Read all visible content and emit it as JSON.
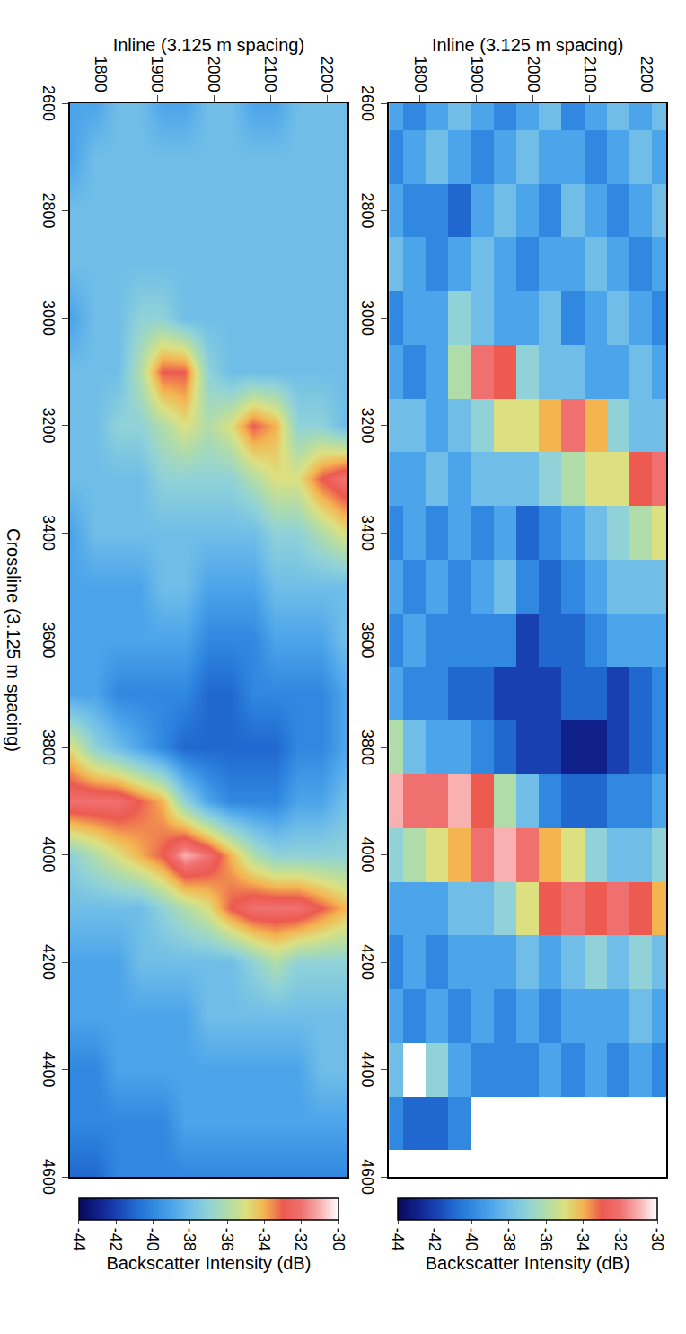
{
  "chart_data": [
    {
      "type": "heatmap",
      "ylabel": "Inline (3.125 m spacing)",
      "x": [
        2600,
        2700,
        2800,
        2900,
        3000,
        3100,
        3200,
        3300,
        3400,
        3500,
        3600,
        3700,
        3800,
        3900,
        4000,
        4100,
        4200,
        4300,
        4400,
        4500,
        4600
      ],
      "y": [
        1750,
        1790,
        1830,
        1870,
        1910,
        1950,
        1990,
        2030,
        2070,
        2110,
        2150,
        2190,
        2230
      ],
      "z": [
        [
          -39,
          -40,
          -39,
          -38,
          -40,
          -39,
          -38,
          -39,
          -40,
          -39,
          -40,
          -39,
          -36,
          -31,
          -37,
          -39,
          -40,
          -39,
          -38,
          -40,
          null
        ],
        [
          -40,
          -39,
          -40,
          -39,
          -39,
          -40,
          -38,
          -39,
          -39,
          -40,
          -39,
          -40,
          -38,
          -32,
          -36,
          -39,
          -39,
          -40,
          null,
          -41,
          null
        ],
        [
          -39,
          -38,
          -40,
          -40,
          -39,
          -39,
          -39,
          -38,
          -40,
          -39,
          -40,
          -40,
          -39,
          -32,
          -35,
          -39,
          -40,
          -39,
          -37,
          -41,
          null
        ],
        [
          -38,
          -39,
          -41,
          -39,
          -37,
          -36,
          -38,
          -39,
          -39,
          -40,
          -40,
          -41,
          -39,
          -31,
          -34,
          -38,
          -39,
          -40,
          -39,
          -40,
          null
        ],
        [
          -39,
          -40,
          -39,
          -38,
          -38,
          -32,
          -37,
          -38,
          -40,
          -39,
          -40,
          -41,
          -40,
          -33,
          -32,
          -38,
          -39,
          -39,
          -40,
          null,
          null
        ],
        [
          -40,
          -39,
          -38,
          -39,
          -39,
          -33,
          -35,
          -38,
          -39,
          -38,
          -40,
          -42,
          -41,
          -36,
          -31,
          -37,
          -39,
          -40,
          -40,
          null,
          null
        ],
        [
          -39,
          -38,
          -39,
          -40,
          -39,
          -37,
          -35,
          -38,
          -41,
          -40,
          -42,
          -42,
          -42,
          -38,
          -32,
          -35,
          -38,
          -39,
          -40,
          null,
          null
        ],
        [
          -38,
          -39,
          -40,
          -39,
          -38,
          -38,
          -34,
          -37,
          -40,
          -41,
          -41,
          -42,
          -42,
          -40,
          -34,
          -33,
          -39,
          -40,
          -39,
          null,
          null
        ],
        [
          -40,
          -39,
          -38,
          -39,
          -40,
          -38,
          -32,
          -36,
          -39,
          -40,
          -41,
          -41,
          -43,
          -41,
          -35,
          -32,
          -38,
          -39,
          -40,
          null,
          null
        ],
        [
          -39,
          -40,
          -39,
          -38,
          -39,
          -39,
          -34,
          -35,
          -38,
          -39,
          -40,
          -41,
          -43,
          -41,
          -37,
          -33,
          -37,
          -39,
          -39,
          null,
          null
        ],
        [
          -38,
          -39,
          -40,
          -39,
          -38,
          -39,
          -37,
          -35,
          -37,
          -38,
          -39,
          -42,
          -42,
          -40,
          -38,
          -32,
          -38,
          -39,
          -40,
          null,
          null
        ],
        [
          -39,
          -38,
          -39,
          -40,
          -39,
          -38,
          -38,
          -33,
          -36,
          -38,
          -39,
          -41,
          -41,
          -40,
          -38,
          -33,
          -37,
          -38,
          -39,
          null,
          null
        ],
        [
          -38,
          -39,
          -38,
          -39,
          -40,
          -39,
          -38,
          -32,
          -35,
          -38,
          -39,
          -40,
          -40,
          -39,
          -37,
          -34,
          -38,
          -39,
          -40,
          null,
          null
        ]
      ],
      "xlim": [
        2600,
        4600
      ],
      "ylim": [
        1745,
        2235
      ],
      "xticks": [
        2600,
        2800,
        3000,
        3200,
        3400,
        3600,
        3800,
        4000,
        4200,
        4400,
        4600
      ],
      "yticks": [
        1800,
        1900,
        2000,
        2100,
        2200
      ],
      "colorbar": {
        "title": "Backscatter Intensity (dB)",
        "range": [
          -44,
          -30
        ],
        "ticks": [
          -30,
          -32,
          -34,
          -36,
          -38,
          -40,
          -42,
          -44
        ]
      }
    },
    {
      "type": "heatmap",
      "xlabel": "Crossline (3.125 m spacing)",
      "ylabel": "Inline (3.125 m spacing)",
      "x": [
        2600,
        2700,
        2800,
        2900,
        3000,
        3100,
        3200,
        3300,
        3400,
        3500,
        3600,
        3700,
        3800,
        3900,
        4000,
        4100,
        4200,
        4300,
        4400,
        4500,
        4600
      ],
      "y": [
        1750,
        1790,
        1830,
        1870,
        1910,
        1950,
        1990,
        2030,
        2070,
        2110,
        2150,
        2190,
        2230
      ],
      "z": [
        [
          -39,
          -39,
          -38,
          -38,
          -39,
          -38,
          -38,
          -38,
          -39,
          -39,
          -39,
          -39,
          -35,
          -32,
          -37,
          -38,
          -39,
          -39,
          -40,
          -40,
          -41
        ],
        [
          -39,
          -38,
          -38,
          -38,
          -38,
          -38,
          -38,
          -38,
          -38,
          -39,
          -39,
          -39,
          -37,
          -32,
          -36,
          -38,
          -39,
          -39,
          -40,
          -40,
          -41
        ],
        [
          -38,
          -38,
          -38,
          -38,
          -38,
          -38,
          -37,
          -38,
          -38,
          -39,
          -39,
          -40,
          -38,
          -32,
          -35,
          -38,
          -39,
          -39,
          -39,
          -40,
          -40
        ],
        [
          -38,
          -38,
          -38,
          -38,
          -37,
          -36,
          -37,
          -38,
          -38,
          -39,
          -39,
          -40,
          -39,
          -33,
          -34,
          -38,
          -38,
          -39,
          -39,
          -40,
          -40
        ],
        [
          -39,
          -38,
          -38,
          -38,
          -37,
          -33,
          -36,
          -37,
          -38,
          -38,
          -39,
          -40,
          -40,
          -34,
          -33,
          -37,
          -38,
          -39,
          -39,
          -40,
          -40
        ],
        [
          -39,
          -38,
          -38,
          -38,
          -38,
          -33,
          -35,
          -37,
          -38,
          -38,
          -39,
          -40,
          -41,
          -37,
          -31,
          -36,
          -38,
          -39,
          -39,
          -39,
          -40
        ],
        [
          -38,
          -38,
          -38,
          -38,
          -38,
          -37,
          -36,
          -37,
          -38,
          -39,
          -40,
          -41,
          -41,
          -39,
          -32,
          -35,
          -38,
          -38,
          -39,
          -39,
          -40
        ],
        [
          -38,
          -38,
          -38,
          -38,
          -38,
          -38,
          -35,
          -37,
          -38,
          -39,
          -40,
          -41,
          -41,
          -40,
          -34,
          -33,
          -38,
          -38,
          -39,
          -39,
          -40
        ],
        [
          -39,
          -38,
          -38,
          -38,
          -38,
          -38,
          -33,
          -36,
          -38,
          -39,
          -40,
          -40,
          -41,
          -40,
          -36,
          -32,
          -37,
          -38,
          -39,
          -39,
          -40
        ],
        [
          -39,
          -38,
          -38,
          -38,
          -38,
          -38,
          -34,
          -35,
          -37,
          -38,
          -39,
          -40,
          -41,
          -40,
          -37,
          -32,
          -36,
          -38,
          -39,
          -39,
          -40
        ],
        [
          -38,
          -38,
          -38,
          -38,
          -38,
          -38,
          -37,
          -35,
          -37,
          -38,
          -39,
          -40,
          -40,
          -39,
          -37,
          -32,
          -37,
          -38,
          -39,
          -39,
          -40
        ],
        [
          -38,
          -38,
          -38,
          -38,
          -38,
          -38,
          -37,
          -33,
          -36,
          -38,
          -39,
          -40,
          -40,
          -39,
          -37,
          -33,
          -37,
          -38,
          -38,
          -39,
          -40
        ],
        [
          -38,
          -38,
          -38,
          -38,
          -38,
          -38,
          -38,
          -32,
          -35,
          -38,
          -38,
          -39,
          -39,
          -38,
          -37,
          -34,
          -37,
          -38,
          -38,
          -39,
          -40
        ]
      ],
      "xlim": [
        2600,
        4600
      ],
      "ylim": [
        1745,
        2235
      ],
      "xticks": [
        2600,
        2800,
        3000,
        3200,
        3400,
        3600,
        3800,
        4000,
        4200,
        4400,
        4600
      ],
      "yticks": [
        1800,
        1900,
        2000,
        2100,
        2200
      ],
      "colorbar": {
        "title": "Backscatter Intensity (dB)",
        "range": [
          -44,
          -30
        ],
        "ticks": [
          -30,
          -32,
          -34,
          -36,
          -38,
          -40,
          -42,
          -44
        ]
      }
    }
  ]
}
